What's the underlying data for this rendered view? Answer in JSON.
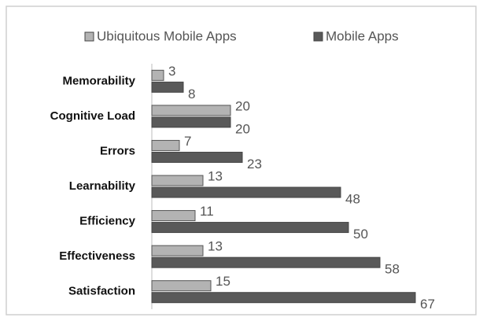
{
  "chart_data": {
    "type": "bar",
    "orientation": "horizontal",
    "categories": [
      "Memorability",
      "Cognitive Load",
      "Errors",
      "Learnability",
      "Efficiency",
      "Effectiveness",
      "Satisfaction"
    ],
    "series": [
      {
        "name": "Ubiquitous Mobile Apps",
        "color": "#b3b3b3",
        "values": [
          3,
          20,
          7,
          13,
          11,
          13,
          15
        ]
      },
      {
        "name": "Mobile Apps",
        "color": "#595959",
        "values": [
          8,
          20,
          23,
          48,
          50,
          58,
          67
        ]
      }
    ],
    "legend": "top",
    "grid": false
  }
}
